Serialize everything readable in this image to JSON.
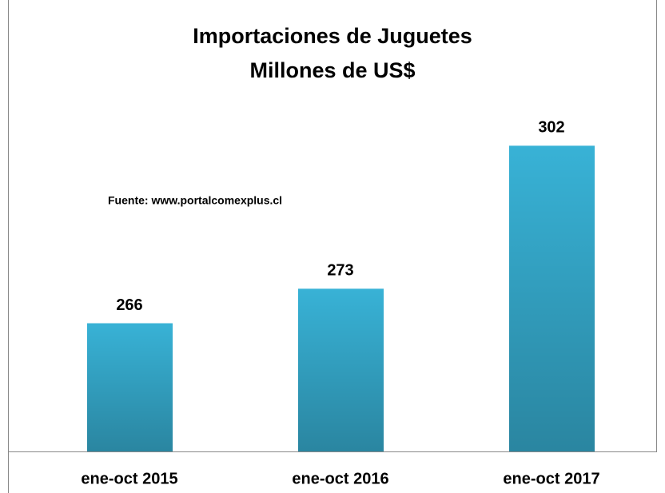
{
  "chart_data": {
    "type": "bar",
    "title": "Importaciones de Juguetes",
    "subtitle": "Millones de US$",
    "annotation": "Fuente: www.portalcomexplus.cl",
    "categories": [
      "ene-oct 2015",
      "ene-oct 2016",
      "ene-oct 2017"
    ],
    "values": [
      266,
      273,
      302
    ],
    "color": "#38b2d6",
    "ylim": [
      240,
      310
    ]
  }
}
